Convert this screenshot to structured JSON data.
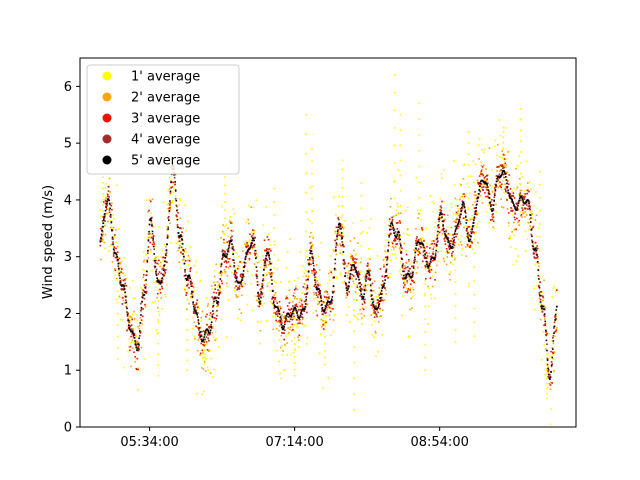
{
  "chart_data": {
    "type": "scatter",
    "title": "",
    "xlabel": "",
    "ylabel": "Wind speed (m/s)",
    "xlim": [
      "04:46:00",
      "10:28:00"
    ],
    "ylim": [
      0,
      6.5
    ],
    "xticks": [
      "05:34:00",
      "07:14:00",
      "08:54:00"
    ],
    "yticks": [
      0,
      1,
      2,
      3,
      4,
      5,
      6
    ],
    "grid": false,
    "legend_position": "upper-left",
    "series": [
      {
        "name": "1' average",
        "color": "#ffff00",
        "spread": 0.55
      },
      {
        "name": "2' average",
        "color": "#ffa500",
        "spread": 0.3
      },
      {
        "name": "3' average",
        "color": "#ee1100",
        "spread": 0.18
      },
      {
        "name": "4' average",
        "color": "#a52a2a",
        "spread": 0.08
      },
      {
        "name": "5' average",
        "color": "#000000",
        "spread": 0.0
      }
    ],
    "trend_5min": {
      "x": [
        "05:00:00",
        "05:05:00",
        "05:10:00",
        "05:15:00",
        "05:20:00",
        "05:25:00",
        "05:30:00",
        "05:35:00",
        "05:40:00",
        "05:45:00",
        "05:50:00",
        "05:55:00",
        "06:00:00",
        "06:05:00",
        "06:10:00",
        "06:15:00",
        "06:20:00",
        "06:25:00",
        "06:30:00",
        "06:35:00",
        "06:40:00",
        "06:45:00",
        "06:50:00",
        "06:55:00",
        "07:00:00",
        "07:05:00",
        "07:10:00",
        "07:15:00",
        "07:20:00",
        "07:25:00",
        "07:30:00",
        "07:35:00",
        "07:40:00",
        "07:45:00",
        "07:50:00",
        "07:55:00",
        "08:00:00",
        "08:05:00",
        "08:10:00",
        "08:15:00",
        "08:20:00",
        "08:25:00",
        "08:30:00",
        "08:35:00",
        "08:40:00",
        "08:45:00",
        "08:50:00",
        "08:55:00",
        "09:00:00",
        "09:05:00",
        "09:10:00",
        "09:15:00",
        "09:20:00",
        "09:25:00",
        "09:30:00",
        "09:35:00",
        "09:40:00",
        "09:45:00",
        "09:50:00",
        "09:55:00",
        "10:00:00",
        "10:05:00",
        "10:10:00",
        "10:15:00"
      ],
      "y": [
        3.3,
        3.9,
        3.2,
        2.6,
        1.7,
        1.5,
        2.3,
        3.5,
        2.6,
        2.9,
        4.5,
        3.5,
        2.6,
        2.1,
        1.7,
        1.6,
        2.2,
        3.1,
        3.1,
        2.5,
        3.0,
        3.2,
        2.3,
        3.2,
        2.1,
        1.9,
        2.0,
        1.9,
        2.1,
        3.0,
        2.3,
        2.2,
        2.3,
        3.6,
        2.6,
        2.8,
        2.3,
        2.8,
        1.9,
        2.4,
        3.6,
        3.3,
        2.7,
        2.8,
        3.2,
        3.0,
        3.0,
        3.6,
        3.3,
        3.4,
        3.8,
        3.4,
        4.0,
        4.3,
        4.0,
        4.4,
        4.3,
        4.0,
        3.9,
        3.9,
        3.2,
        2.0,
        0.9,
        2.3
      ]
    },
    "outliers_1min": [
      {
        "x": "05:02:00",
        "y": 4.4
      },
      {
        "x": "05:12:00",
        "y": 1.2
      },
      {
        "x": "05:40:00",
        "y": 0.9
      },
      {
        "x": "05:48:00",
        "y": 5.3
      },
      {
        "x": "06:00:00",
        "y": 1.0
      },
      {
        "x": "06:12:00",
        "y": 1.1
      },
      {
        "x": "06:26:00",
        "y": 4.4
      },
      {
        "x": "07:00:00",
        "y": 4.2
      },
      {
        "x": "07:14:00",
        "y": 0.9
      },
      {
        "x": "07:22:00",
        "y": 5.5
      },
      {
        "x": "07:26:00",
        "y": 4.9
      },
      {
        "x": "07:35:00",
        "y": 1.1
      },
      {
        "x": "07:47:00",
        "y": 4.7
      },
      {
        "x": "07:55:00",
        "y": 0.3
      },
      {
        "x": "08:00:00",
        "y": 4.3
      },
      {
        "x": "08:23:00",
        "y": 6.2
      },
      {
        "x": "08:27:00",
        "y": 5.5
      },
      {
        "x": "08:40:00",
        "y": 5.7
      },
      {
        "x": "08:44:00",
        "y": 1.0
      },
      {
        "x": "09:05:00",
        "y": 1.5
      },
      {
        "x": "09:14:00",
        "y": 5.2
      },
      {
        "x": "09:18:00",
        "y": 1.6
      },
      {
        "x": "09:38:00",
        "y": 5.2
      },
      {
        "x": "09:50:00",
        "y": 5.6
      },
      {
        "x": "10:03:00",
        "y": 4.5
      },
      {
        "x": "10:08:00",
        "y": 0.5
      }
    ]
  }
}
